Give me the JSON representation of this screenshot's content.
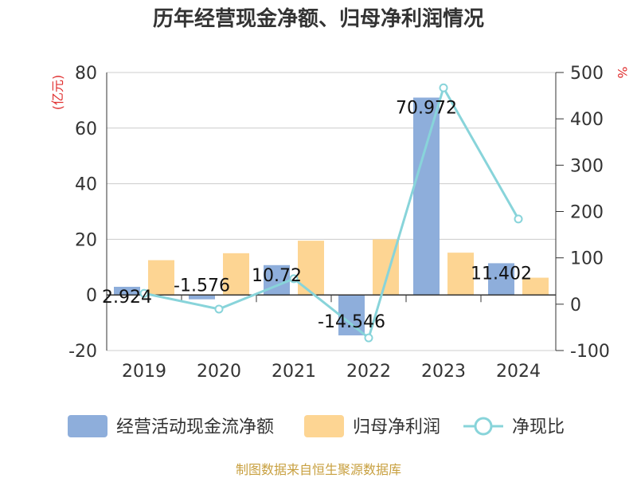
{
  "chart_data": {
    "type": "bar+line",
    "title": "历年经营现金净额、归母净利润情况",
    "categories": [
      "2019",
      "2020",
      "2021",
      "2022",
      "2023",
      "2024"
    ],
    "series": [
      {
        "name": "经营活动现金流净额",
        "type": "bar",
        "axis": "left",
        "color": "#8eaedb",
        "values": [
          2.924,
          -1.576,
          10.72,
          -14.546,
          70.972,
          11.402
        ],
        "labels": [
          "2.924",
          "-1.576",
          "10.72",
          "-14.546",
          "70.972",
          "11.402"
        ]
      },
      {
        "name": "归母净利润",
        "type": "bar",
        "axis": "left",
        "color": "#fdd593",
        "values": [
          12.5,
          15.0,
          19.5,
          20.0,
          15.2,
          6.2
        ]
      },
      {
        "name": "净现比",
        "type": "line",
        "axis": "right",
        "color": "#88d4da",
        "values": [
          23.4,
          -10.5,
          55.0,
          -72.7,
          466.9,
          183.9
        ]
      }
    ],
    "y_left": {
      "unit": "(亿元)",
      "min": -20,
      "max": 80,
      "ticks": [
        "-20",
        "0",
        "20",
        "40",
        "60",
        "80"
      ]
    },
    "y_right": {
      "unit": "%",
      "min": -100,
      "max": 500,
      "ticks": [
        "-100",
        "0",
        "100",
        "200",
        "300",
        "400",
        "500"
      ]
    }
  },
  "source": "制图数据来自恒生聚源数据库"
}
